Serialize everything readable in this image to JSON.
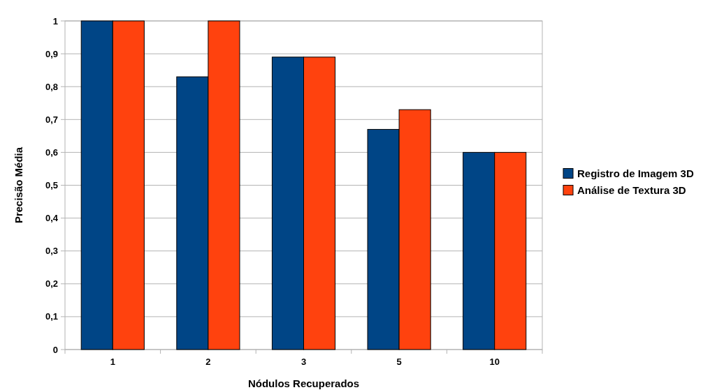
{
  "chart_data": {
    "type": "bar",
    "xlabel": "Nódulos Recuperados",
    "ylabel": "Precisão Média",
    "categories": [
      "1",
      "2",
      "3",
      "5",
      "10"
    ],
    "series": [
      {
        "name": "Registro de Imagem 3D",
        "color": "#004586",
        "values": [
          1,
          0.83,
          0.89,
          0.67,
          0.6
        ]
      },
      {
        "name": "Análise de Textura 3D",
        "color": "#ff420e",
        "values": [
          1,
          1,
          0.89,
          0.73,
          0.6
        ]
      }
    ],
    "ylim": [
      0,
      1
    ],
    "yticks": [
      0,
      {
        "value": 0.1,
        "label": "0,1"
      },
      {
        "value": 0.2,
        "label": "0,2"
      },
      {
        "value": 0.3,
        "label": "0,3"
      },
      {
        "value": 0.4,
        "label": "0,4"
      },
      {
        "value": 0.5,
        "label": "0,5"
      },
      {
        "value": 0.6,
        "label": "0,6"
      },
      {
        "value": 0.7,
        "label": "0,7"
      },
      {
        "value": 0.8,
        "label": "0,8"
      },
      {
        "value": 0.9,
        "label": "0,9"
      },
      1
    ],
    "grid": "y",
    "legend": "right"
  }
}
